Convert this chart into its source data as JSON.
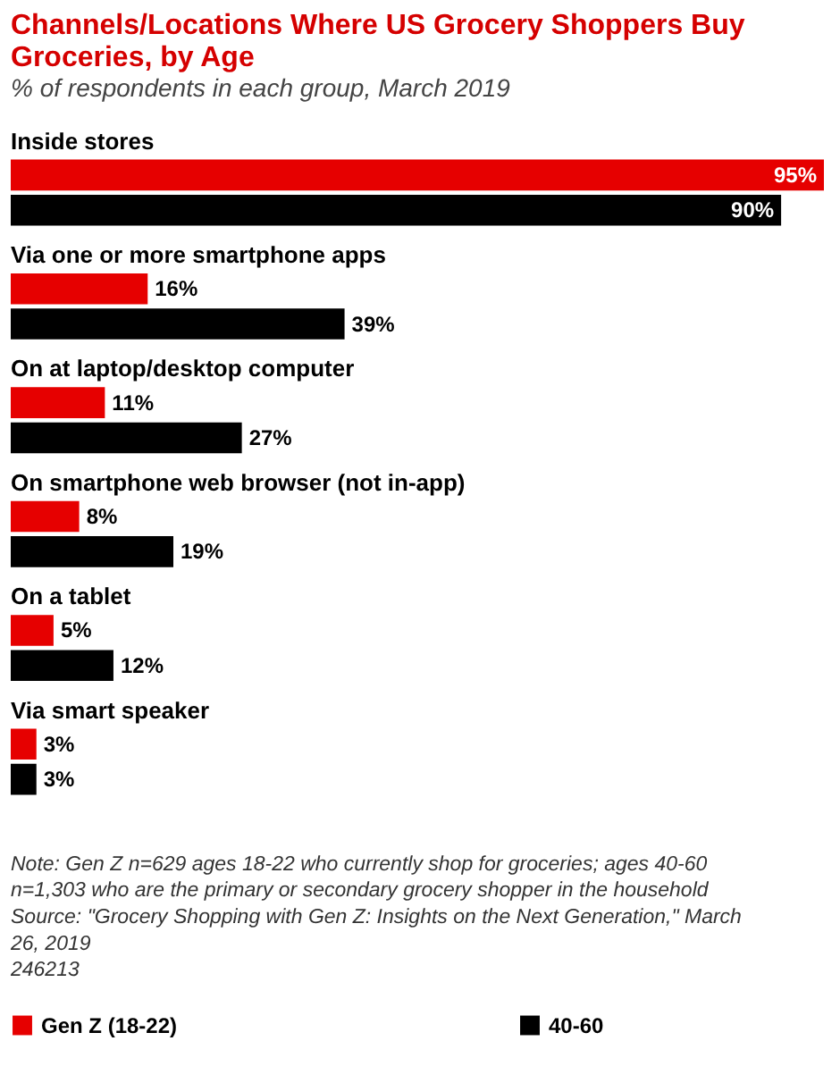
{
  "chart_data": {
    "type": "bar",
    "orientation": "horizontal",
    "title": "Channels/Locations Where US Grocery Shoppers Buy Groceries, by Age",
    "subtitle": "% of respondents in each group, March 2019",
    "categories": [
      "Inside stores",
      "Via one or more smartphone apps",
      "On at laptop/desktop computer",
      "On smartphone web browser (not in-app)",
      "On a tablet",
      "Via smart speaker"
    ],
    "series": [
      {
        "name": "Gen Z (18-22)",
        "color": "#e60000",
        "values": [
          95,
          16,
          11,
          8,
          5,
          3
        ],
        "value_labels": [
          "95%",
          "16%",
          "11%",
          "8%",
          "5%",
          "3%"
        ]
      },
      {
        "name": "40-60",
        "color": "#000000",
        "values": [
          90,
          39,
          27,
          19,
          12,
          3
        ],
        "value_labels": [
          "90%",
          "39%",
          "27%",
          "19%",
          "12%",
          "3%"
        ]
      }
    ],
    "legend": "bottom",
    "annotations": [
      "Note: Gen Z n=629 ages 18-22 who currently shop for groceries; ages 40-60 n=1,303 who are the primary or secondary grocery shopper in the household",
      "Source: \"Grocery Shopping with Gen Z: Insights on the Next Generation,\" March 26, 2019",
      "246213"
    ]
  }
}
